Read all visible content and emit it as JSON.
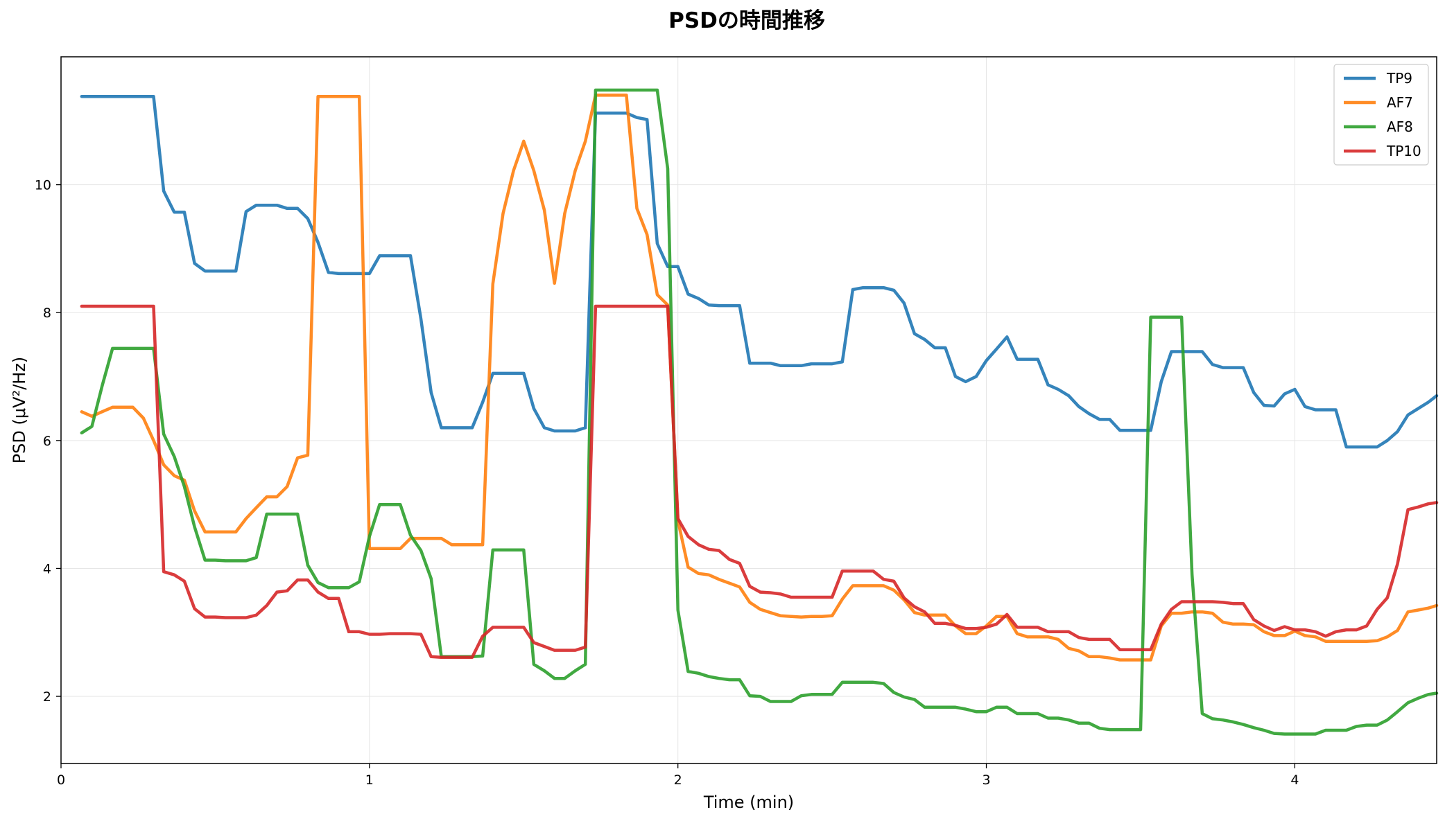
{
  "chart_data": {
    "type": "line",
    "title": "PSDの時間推移",
    "xlabel": "Time (min)",
    "ylabel": "PSD (μV²/Hz)",
    "xlim": [
      0,
      4.46
    ],
    "ylim": [
      0.95,
      12.0
    ],
    "xticks": [
      0,
      1,
      2,
      3,
      4
    ],
    "yticks": [
      2,
      4,
      6,
      8,
      10
    ],
    "grid": true,
    "legend_position": "top-right",
    "x": [
      0.067,
      0.1,
      0.133,
      0.167,
      0.2,
      0.233,
      0.267,
      0.3,
      0.333,
      0.367,
      0.4,
      0.433,
      0.467,
      0.5,
      0.533,
      0.567,
      0.6,
      0.633,
      0.667,
      0.7,
      0.733,
      0.767,
      0.8,
      0.833,
      0.867,
      0.9,
      0.933,
      0.967,
      1.0,
      1.033,
      1.067,
      1.1,
      1.133,
      1.167,
      1.2,
      1.233,
      1.267,
      1.3,
      1.333,
      1.367,
      1.4,
      1.433,
      1.467,
      1.5,
      1.533,
      1.567,
      1.6,
      1.633,
      1.667,
      1.7,
      1.733,
      1.767,
      1.8,
      1.833,
      1.867,
      1.9,
      1.933,
      1.967,
      2.0,
      2.033,
      2.067,
      2.1,
      2.133,
      2.167,
      2.2,
      2.233,
      2.267,
      2.3,
      2.333,
      2.367,
      2.4,
      2.433,
      2.467,
      2.5,
      2.533,
      2.567,
      2.6,
      2.633,
      2.667,
      2.7,
      2.733,
      2.767,
      2.8,
      2.833,
      2.867,
      2.9,
      2.933,
      2.967,
      3.0,
      3.033,
      3.067,
      3.1,
      3.133,
      3.167,
      3.2,
      3.233,
      3.267,
      3.3,
      3.333,
      3.367,
      3.4,
      3.433,
      3.467,
      3.5,
      3.533,
      3.567,
      3.6,
      3.633,
      3.667,
      3.7,
      3.733,
      3.767,
      3.8,
      3.833,
      3.867,
      3.9,
      3.933,
      3.967,
      4.0,
      4.033,
      4.067,
      4.1,
      4.133,
      4.167,
      4.2,
      4.233,
      4.267,
      4.3,
      4.333,
      4.367,
      4.4,
      4.433,
      4.46
    ],
    "series": [
      {
        "name": "TP9",
        "color": "#1f77b4",
        "values": [
          11.38,
          11.38,
          11.38,
          11.38,
          11.38,
          11.38,
          11.38,
          11.38,
          9.9,
          9.57,
          9.57,
          8.77,
          8.65,
          8.65,
          8.65,
          8.65,
          9.58,
          9.68,
          9.68,
          9.68,
          9.63,
          9.63,
          9.47,
          9.1,
          8.63,
          8.61,
          8.61,
          8.61,
          8.61,
          8.89,
          8.89,
          8.89,
          8.89,
          7.9,
          6.75,
          6.2,
          6.2,
          6.2,
          6.2,
          6.6,
          7.05,
          7.05,
          7.05,
          7.05,
          6.5,
          6.2,
          6.15,
          6.15,
          6.15,
          6.2,
          11.12,
          11.12,
          11.12,
          11.12,
          11.05,
          11.02,
          9.08,
          8.72,
          8.72,
          8.29,
          8.22,
          8.12,
          8.11,
          8.11,
          8.11,
          7.21,
          7.21,
          7.21,
          7.17,
          7.17,
          7.17,
          7.2,
          7.2,
          7.2,
          7.23,
          8.36,
          8.39,
          8.39,
          8.39,
          8.35,
          8.15,
          7.67,
          7.58,
          7.45,
          7.45,
          7.0,
          6.92,
          7.0,
          7.25,
          7.43,
          7.62,
          7.27,
          7.27,
          7.27,
          6.87,
          6.8,
          6.7,
          6.53,
          6.42,
          6.33,
          6.33,
          6.16,
          6.16,
          6.16,
          6.16,
          6.92,
          7.39,
          7.39,
          7.39,
          7.39,
          7.19,
          7.14,
          7.14,
          7.14,
          6.75,
          6.55,
          6.54,
          6.73,
          6.8,
          6.53,
          6.48,
          6.48,
          6.48,
          5.9,
          5.9,
          5.9,
          5.9,
          6.0,
          6.14,
          6.4,
          6.5,
          6.6,
          6.7
        ]
      },
      {
        "name": "AF7",
        "color": "#ff7f0e",
        "values": [
          6.45,
          6.38,
          6.45,
          6.52,
          6.52,
          6.52,
          6.35,
          6.0,
          5.62,
          5.45,
          5.38,
          4.9,
          4.57,
          4.57,
          4.57,
          4.57,
          4.78,
          4.95,
          5.12,
          5.12,
          5.28,
          5.73,
          5.77,
          11.38,
          11.38,
          11.38,
          11.38,
          11.38,
          4.31,
          4.31,
          4.31,
          4.31,
          4.47,
          4.47,
          4.47,
          4.47,
          4.37,
          4.37,
          4.37,
          4.37,
          8.45,
          9.55,
          10.22,
          10.68,
          10.22,
          9.6,
          8.46,
          9.55,
          10.22,
          10.68,
          11.4,
          11.4,
          11.4,
          11.4,
          9.63,
          9.22,
          8.28,
          8.12,
          4.75,
          4.02,
          3.92,
          3.9,
          3.83,
          3.77,
          3.71,
          3.47,
          3.36,
          3.31,
          3.26,
          3.25,
          3.24,
          3.25,
          3.25,
          3.26,
          3.52,
          3.73,
          3.73,
          3.73,
          3.73,
          3.66,
          3.51,
          3.31,
          3.27,
          3.27,
          3.27,
          3.1,
          2.98,
          2.98,
          3.1,
          3.25,
          3.25,
          2.98,
          2.93,
          2.93,
          2.93,
          2.89,
          2.75,
          2.71,
          2.62,
          2.62,
          2.6,
          2.57,
          2.57,
          2.57,
          2.57,
          3.1,
          3.3,
          3.3,
          3.32,
          3.32,
          3.3,
          3.16,
          3.13,
          3.13,
          3.12,
          3.01,
          2.95,
          2.95,
          3.02,
          2.95,
          2.93,
          2.86,
          2.86,
          2.86,
          2.86,
          2.86,
          2.87,
          2.93,
          3.03,
          3.32,
          3.35,
          3.38,
          3.42
        ]
      },
      {
        "name": "AF8",
        "color": "#2ca02c",
        "values": [
          6.12,
          6.22,
          6.85,
          7.44,
          7.44,
          7.44,
          7.44,
          7.44,
          6.1,
          5.75,
          5.28,
          4.65,
          4.13,
          4.13,
          4.12,
          4.12,
          4.12,
          4.17,
          4.85,
          4.85,
          4.85,
          4.85,
          4.05,
          3.78,
          3.7,
          3.7,
          3.7,
          3.79,
          4.5,
          5.0,
          5.0,
          5.0,
          4.52,
          4.28,
          3.84,
          2.62,
          2.62,
          2.62,
          2.62,
          2.63,
          4.29,
          4.29,
          4.29,
          4.29,
          2.5,
          2.4,
          2.28,
          2.28,
          2.4,
          2.5,
          11.48,
          11.48,
          11.48,
          11.48,
          11.48,
          11.48,
          11.48,
          10.25,
          3.35,
          2.39,
          2.36,
          2.31,
          2.28,
          2.26,
          2.26,
          2.01,
          2.0,
          1.92,
          1.92,
          1.92,
          2.01,
          2.03,
          2.03,
          2.03,
          2.22,
          2.22,
          2.22,
          2.22,
          2.2,
          2.06,
          1.99,
          1.95,
          1.83,
          1.83,
          1.83,
          1.83,
          1.8,
          1.76,
          1.76,
          1.83,
          1.83,
          1.73,
          1.73,
          1.73,
          1.66,
          1.66,
          1.63,
          1.58,
          1.58,
          1.5,
          1.48,
          1.48,
          1.48,
          1.48,
          7.93,
          7.93,
          7.93,
          7.93,
          3.9,
          1.73,
          1.65,
          1.63,
          1.6,
          1.56,
          1.51,
          1.47,
          1.42,
          1.41,
          1.41,
          1.41,
          1.41,
          1.47,
          1.47,
          1.47,
          1.53,
          1.55,
          1.55,
          1.63,
          1.76,
          1.9,
          1.97,
          2.03,
          2.05
        ]
      },
      {
        "name": "TP10",
        "color": "#d62728",
        "values": [
          8.1,
          8.1,
          8.1,
          8.1,
          8.1,
          8.1,
          8.1,
          8.1,
          3.95,
          3.9,
          3.8,
          3.37,
          3.24,
          3.24,
          3.23,
          3.23,
          3.23,
          3.27,
          3.42,
          3.63,
          3.65,
          3.82,
          3.82,
          3.63,
          3.53,
          3.53,
          3.01,
          3.01,
          2.97,
          2.97,
          2.98,
          2.98,
          2.98,
          2.97,
          2.62,
          2.61,
          2.61,
          2.61,
          2.61,
          2.94,
          3.08,
          3.08,
          3.08,
          3.08,
          2.84,
          2.78,
          2.72,
          2.72,
          2.72,
          2.77,
          8.1,
          8.1,
          8.1,
          8.1,
          8.1,
          8.1,
          8.1,
          8.1,
          4.78,
          4.5,
          4.37,
          4.3,
          4.28,
          4.14,
          4.08,
          3.72,
          3.63,
          3.62,
          3.6,
          3.55,
          3.55,
          3.55,
          3.55,
          3.55,
          3.96,
          3.96,
          3.96,
          3.96,
          3.83,
          3.8,
          3.54,
          3.4,
          3.32,
          3.14,
          3.14,
          3.11,
          3.06,
          3.06,
          3.08,
          3.13,
          3.28,
          3.08,
          3.08,
          3.08,
          3.01,
          3.01,
          3.01,
          2.92,
          2.89,
          2.89,
          2.89,
          2.73,
          2.73,
          2.73,
          2.73,
          3.13,
          3.36,
          3.48,
          3.48,
          3.48,
          3.48,
          3.47,
          3.45,
          3.45,
          3.2,
          3.1,
          3.03,
          3.09,
          3.04,
          3.04,
          3.01,
          2.94,
          3.01,
          3.04,
          3.04,
          3.1,
          3.36,
          3.54,
          4.07,
          4.92,
          4.96,
          5.01,
          5.03
        ]
      }
    ]
  }
}
